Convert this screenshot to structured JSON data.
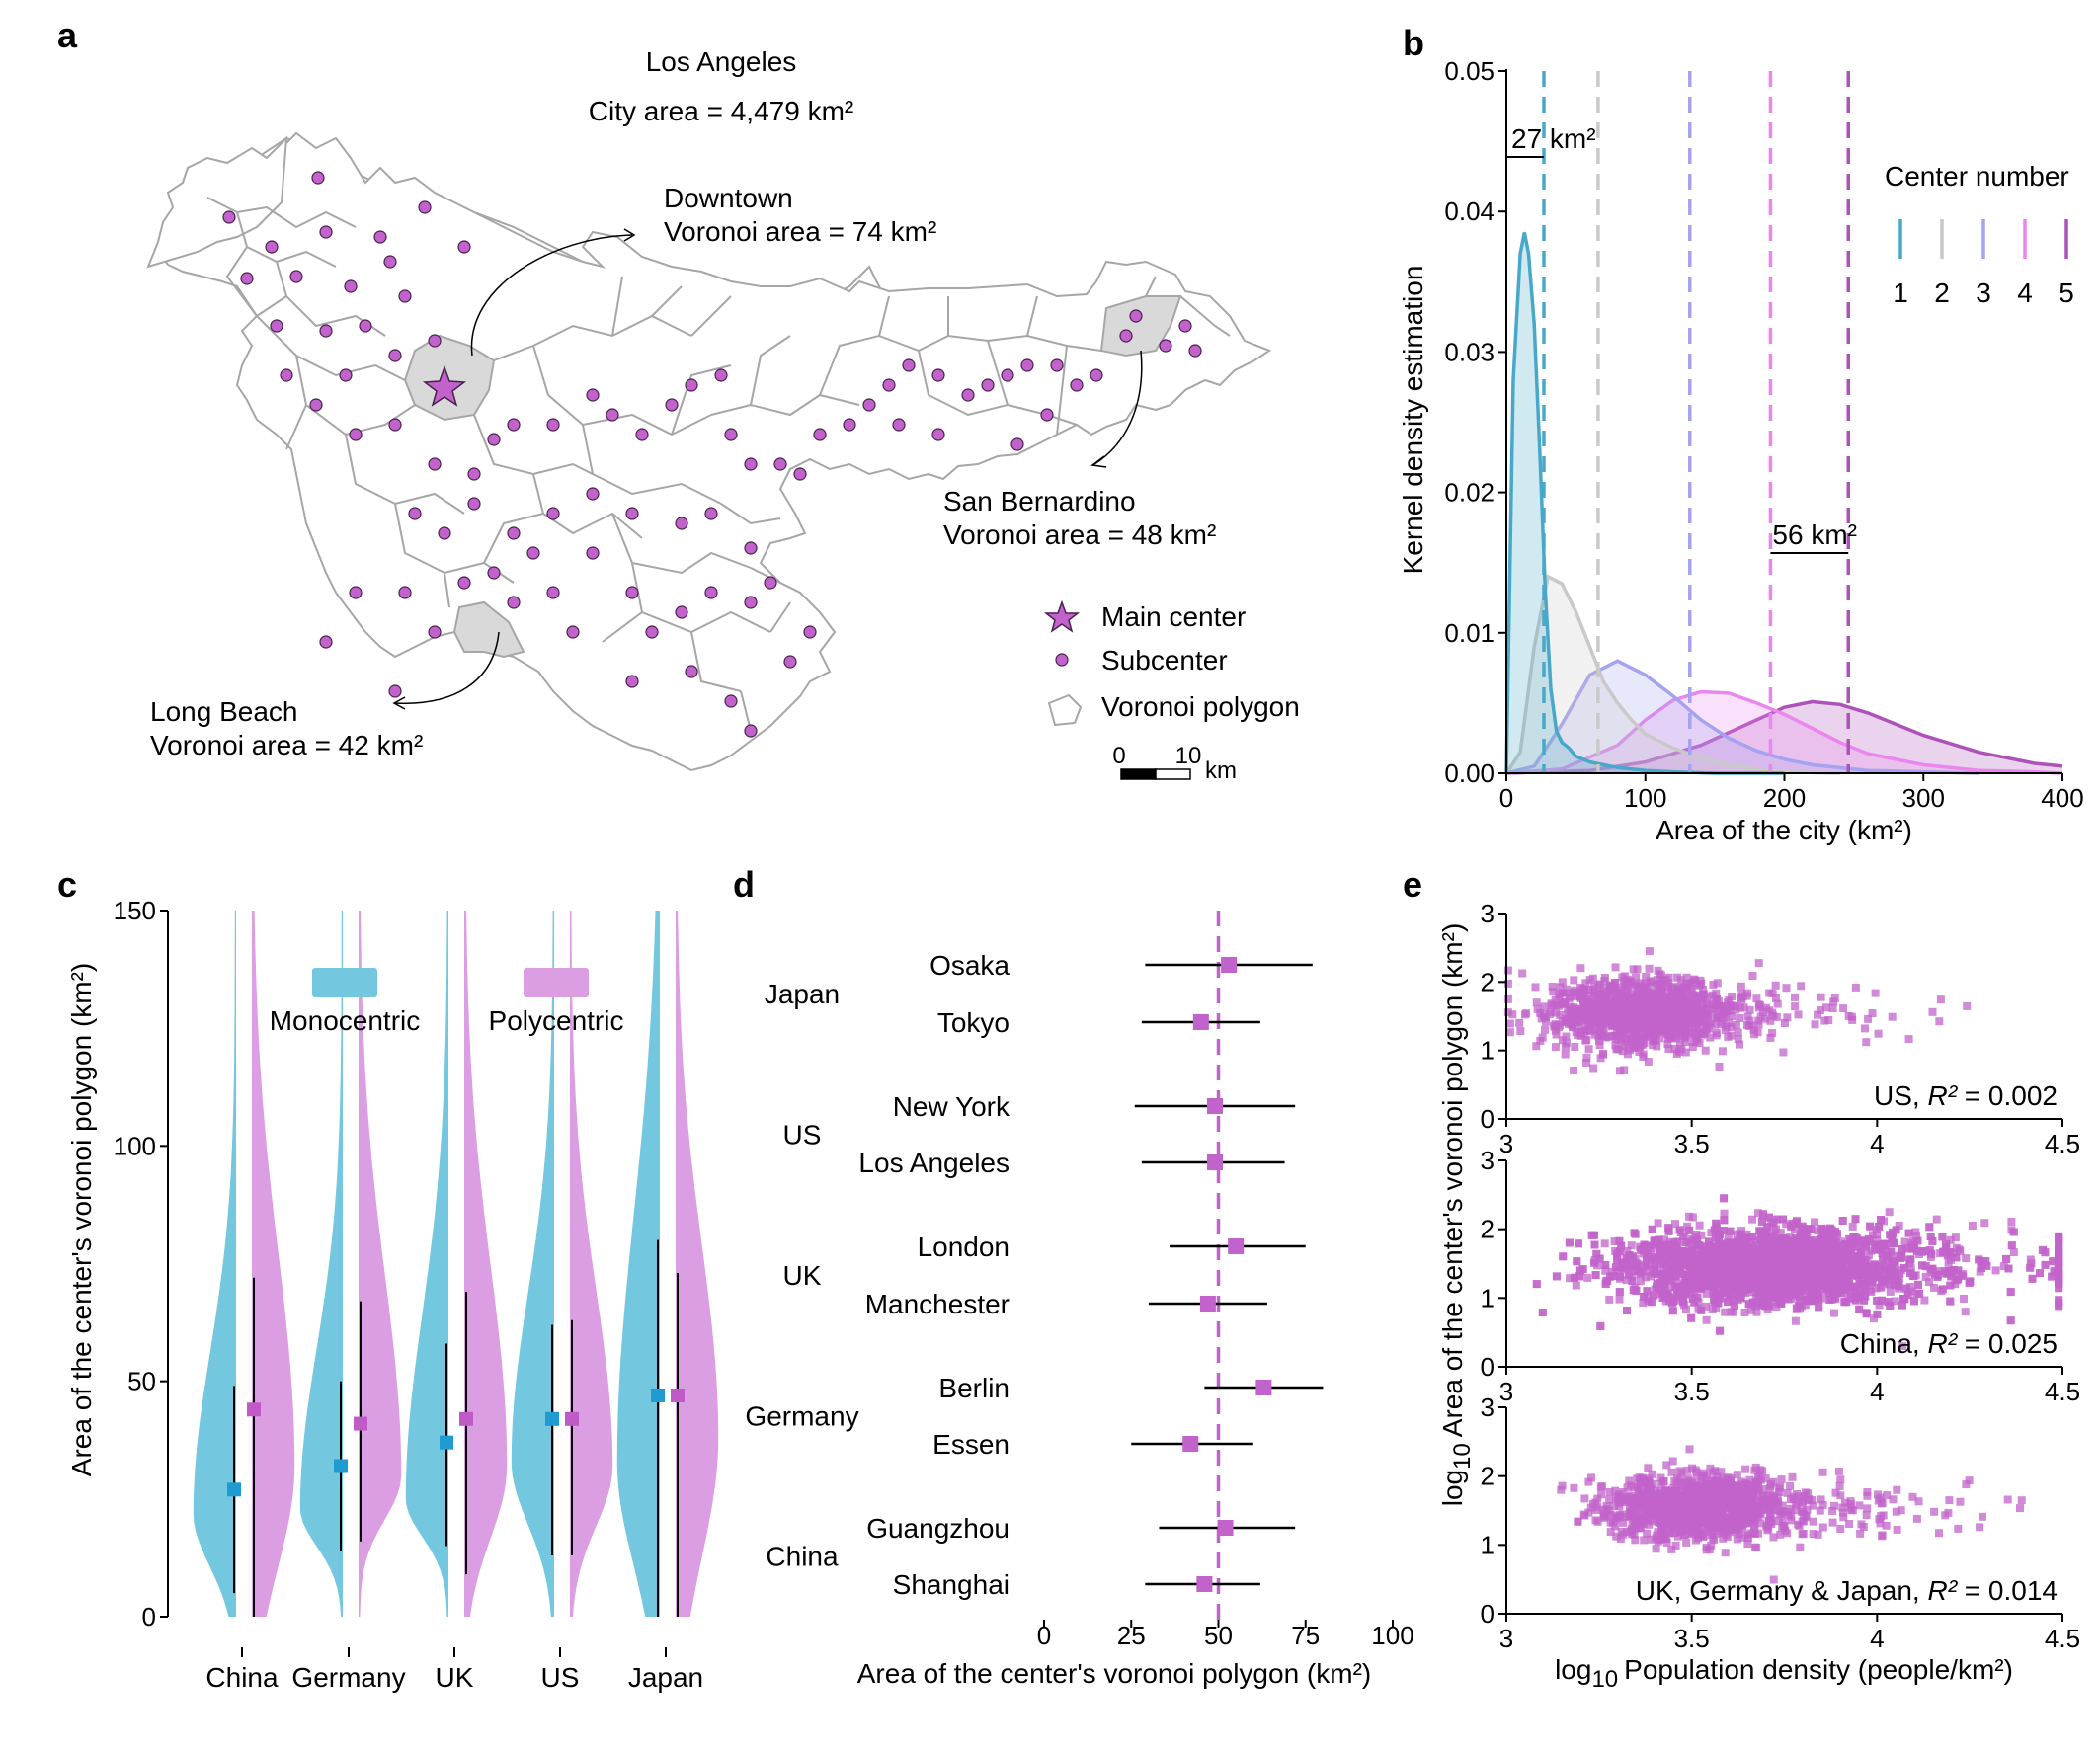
{
  "colors": {
    "c1": "#47a8c9",
    "c2": "#c9c9c9",
    "c3": "#a5a2f0",
    "c4": "#ea86ee",
    "c5": "#ac52b8",
    "mono": "#73c8e0",
    "poly": "#dc9ee2",
    "mono_point": "#1f9bd1",
    "poly_point": "#c05ac7",
    "purple": "#c163cb"
  },
  "panel_a": {
    "letter": "a",
    "title": "Los Angeles",
    "city_area": "City area = 4,479 km²",
    "downtown": [
      "Downtown",
      "Voronoi area = 74 km²"
    ],
    "san_bernardino": [
      "San Bernardino",
      "Voronoi area = 48 km²"
    ],
    "long_beach": [
      "Long Beach",
      "Voronoi area = 42 km²"
    ],
    "legend": {
      "main_center": "Main center",
      "subcenter": "Subcenter",
      "voronoi": "Voronoi polygon"
    },
    "scale": {
      "zero": "0",
      "ten": "10",
      "unit": "km"
    }
  },
  "chart_data": [
    {
      "panel": "b",
      "type": "area",
      "letter": "b",
      "xlabel": "Area of the city (km²)",
      "ylabel": "Kernel density estimation",
      "xlim": [
        0,
        400
      ],
      "ylim": [
        0,
        0.05
      ],
      "xticks": [
        "0",
        "100",
        "200",
        "300",
        "400"
      ],
      "yticks": [
        "0.00",
        "0.01",
        "0.02",
        "0.03",
        "0.04",
        "0.05"
      ],
      "legend_title": "Center number",
      "series": [
        {
          "name": "1",
          "color": "#47a8c9",
          "mean": 27,
          "x": [
            0,
            5,
            10,
            13,
            16,
            20,
            24,
            28,
            32,
            36,
            40,
            45,
            50,
            60,
            70,
            80,
            100,
            120,
            150,
            200
          ],
          "y": [
            0,
            0.028,
            0.037,
            0.0385,
            0.037,
            0.032,
            0.023,
            0.013,
            0.006,
            0.003,
            0.0022,
            0.0018,
            0.0012,
            0.0008,
            0.0006,
            0.0004,
            0.0002,
            0.0001,
            0,
            0
          ]
        },
        {
          "name": "2",
          "color": "#c9c9c9",
          "mean": 66,
          "x": [
            0,
            10,
            20,
            30,
            40,
            50,
            60,
            70,
            80,
            90,
            100,
            120,
            140,
            160,
            180,
            200,
            240
          ],
          "y": [
            0,
            0.0015,
            0.009,
            0.014,
            0.0135,
            0.0115,
            0.009,
            0.0065,
            0.005,
            0.0038,
            0.0028,
            0.0018,
            0.0011,
            0.0006,
            0.0003,
            0.0001,
            0
          ]
        },
        {
          "name": "3",
          "color": "#a5a2f0",
          "mean": 132,
          "x": [
            0,
            20,
            40,
            60,
            80,
            100,
            120,
            140,
            160,
            180,
            200,
            220,
            260,
            300,
            340
          ],
          "y": [
            0,
            0.0005,
            0.0035,
            0.007,
            0.008,
            0.007,
            0.0055,
            0.0038,
            0.0025,
            0.0016,
            0.001,
            0.0006,
            0.0002,
            0.0001,
            0
          ]
        },
        {
          "name": "4",
          "color": "#ea86ee",
          "mean": 190,
          "x": [
            0,
            40,
            80,
            100,
            120,
            140,
            160,
            180,
            200,
            220,
            240,
            260,
            300,
            340,
            380,
            400
          ],
          "y": [
            0,
            0.0003,
            0.002,
            0.0038,
            0.0052,
            0.0058,
            0.0057,
            0.005,
            0.0042,
            0.0032,
            0.0022,
            0.0014,
            0.0006,
            0.0002,
            0.0001,
            0
          ]
        },
        {
          "name": "5",
          "color": "#ac52b8",
          "mean": 246,
          "x": [
            0,
            60,
            100,
            140,
            180,
            200,
            220,
            240,
            260,
            280,
            300,
            340,
            380,
            400
          ],
          "y": [
            0,
            0.0002,
            0.0008,
            0.002,
            0.0038,
            0.0047,
            0.0051,
            0.0049,
            0.0043,
            0.0035,
            0.0027,
            0.0015,
            0.0007,
            0.0005
          ]
        }
      ],
      "annotations": {
        "left": "27 km²",
        "right": "56 km²"
      }
    },
    {
      "panel": "c",
      "type": "violin",
      "letter": "c",
      "ylabel": "Area of the center's voronoi polygon (km²)",
      "ylim": [
        0,
        150
      ],
      "yticks": [
        "0",
        "50",
        "100",
        "150"
      ],
      "categories": [
        "China",
        "Germany",
        "UK",
        "US",
        "Japan"
      ],
      "legend": {
        "mono": "Monocentric",
        "poly": "Polycentric"
      },
      "monocentric": {
        "median": [
          27,
          32,
          37,
          42,
          47
        ],
        "low": [
          5,
          14,
          15,
          13,
          0
        ],
        "high": [
          49,
          50,
          58,
          62,
          80
        ],
        "peak": [
          22,
          23,
          25,
          33,
          33
        ]
      },
      "polycentric": {
        "median": [
          44,
          41,
          42,
          42,
          47
        ],
        "low": [
          0,
          16,
          9,
          13,
          0
        ],
        "high": [
          72,
          67,
          69,
          63,
          73
        ],
        "peak": [
          32,
          30,
          32,
          32,
          38
        ]
      }
    },
    {
      "panel": "d",
      "type": "forest",
      "letter": "d",
      "xlabel": "Area of the center's voronoi polygon (km²)",
      "xlim": [
        0,
        100
      ],
      "xticks": [
        "0",
        "25",
        "50",
        "75",
        "100"
      ],
      "reference": 50,
      "groups": [
        "Japan",
        "US",
        "UK",
        "Germany",
        "China"
      ],
      "cities": [
        "Osaka",
        "Tokyo",
        "New York",
        "Los Angeles",
        "London",
        "Manchester",
        "Berlin",
        "Essen",
        "Guangzhou",
        "Shanghai"
      ],
      "values": [
        53,
        45,
        49,
        49,
        55,
        47,
        63,
        42,
        52,
        46
      ],
      "low": [
        29,
        28,
        26,
        28,
        36,
        30,
        46,
        25,
        33,
        29
      ],
      "high": [
        77,
        62,
        72,
        69,
        75,
        64,
        80,
        60,
        72,
        62
      ]
    },
    {
      "panel": "e",
      "type": "scatter",
      "letter": "e",
      "xlabel_sub": "10",
      "xlabel": "Population density (people/km²)",
      "ylabel": "Area of the center's voronoi polygon (km²)",
      "log_prefix": "log",
      "xlim": [
        3,
        4.5
      ],
      "ylim": [
        0,
        3
      ],
      "xticks": [
        "3",
        "3.5",
        "4",
        "4.5"
      ],
      "yticks": [
        "0",
        "1",
        "2",
        "3"
      ],
      "subplots": [
        {
          "name": "US",
          "r2": "0.002",
          "r2_label": "R²",
          "center_x": 3.35,
          "center_y": 1.55,
          "sx": 0.12,
          "sy": 0.25,
          "n": 1200,
          "tail": 0.12
        },
        {
          "name": "China",
          "r2": "0.025",
          "r2_label": "R²",
          "center_x": 3.7,
          "center_y": 1.45,
          "sx": 0.2,
          "sy": 0.28,
          "n": 3200,
          "tail": 0.1
        },
        {
          "name": "UK, Germany & Japan",
          "r2": "0.014",
          "r2_label": "R²",
          "center_x": 3.5,
          "center_y": 1.55,
          "sx": 0.12,
          "sy": 0.22,
          "n": 1300,
          "tail": 0.15
        }
      ]
    }
  ]
}
